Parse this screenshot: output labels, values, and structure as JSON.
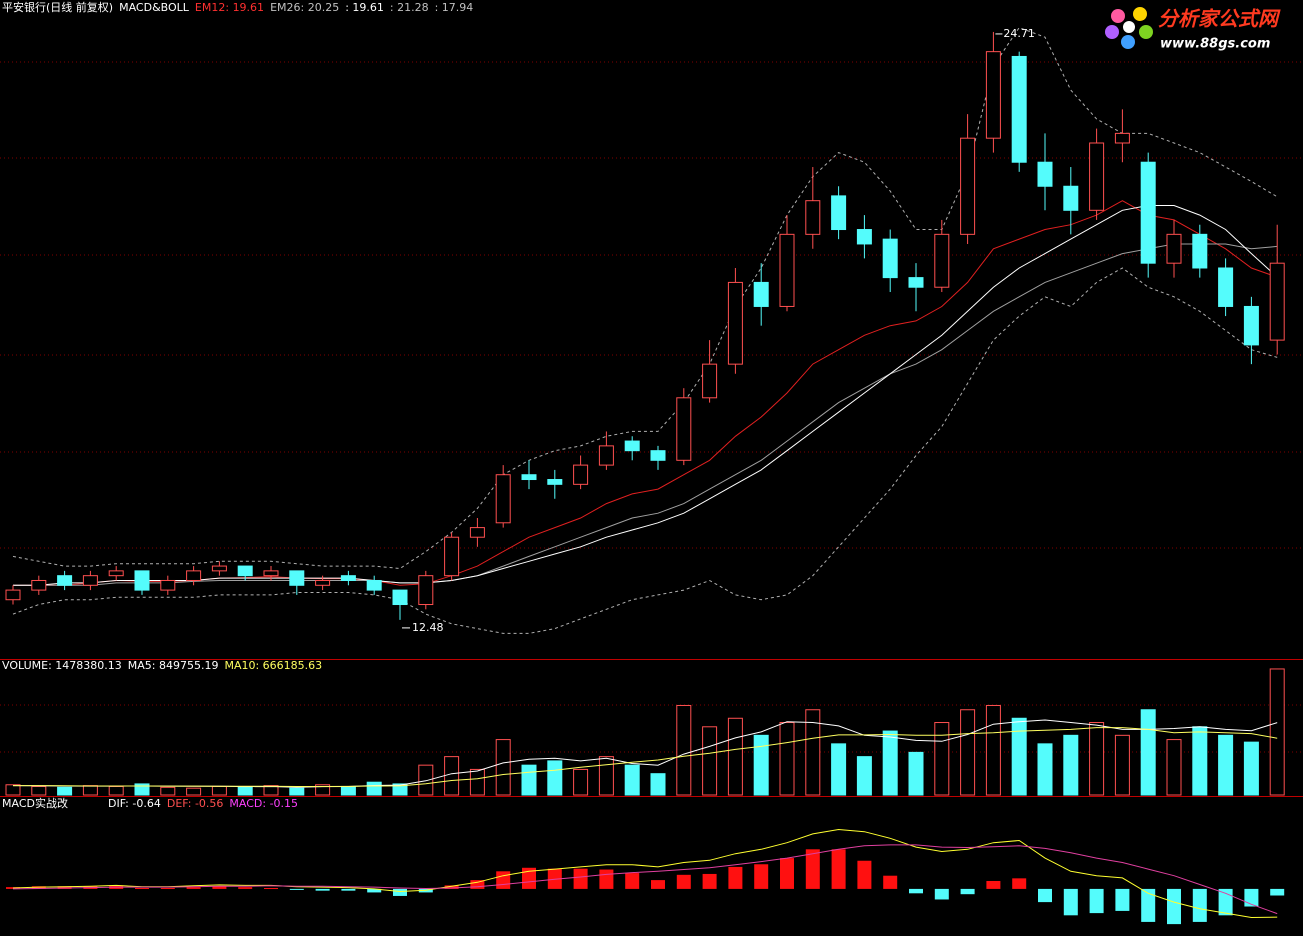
{
  "chart_data": [
    {
      "type": "candlestick",
      "header": [
        {
          "text": "平安银行(日线 前复权)",
          "color": "#ffffff"
        },
        {
          "text": "MACD&BOLL",
          "color": "#ffffff"
        },
        {
          "text": "EM12: 19.61",
          "color": "#ff3030"
        },
        {
          "text": "EM26: 20.25",
          "color": "#c0c0c0"
        },
        {
          "text": ": 19.61",
          "color": "#ffffff"
        },
        {
          "text": ": 21.28",
          "color": "#c0c0c0"
        },
        {
          "text": ": 17.94",
          "color": "#c0c0c0"
        }
      ],
      "high_label": "24.71",
      "low_label": "12.48",
      "up_color": "#ff5050",
      "down_color": "#54fcfc",
      "ylim": [
        11.75,
        25.0
      ],
      "open": [
        12.9,
        13.1,
        13.4,
        13.2,
        13.4,
        13.5,
        13.1,
        13.3,
        13.5,
        13.6,
        13.4,
        13.5,
        13.2,
        13.4,
        13.3,
        13.1,
        12.8,
        13.4,
        14.2,
        14.5,
        15.5,
        15.4,
        15.3,
        15.7,
        16.2,
        16.0,
        15.8,
        17.1,
        17.8,
        19.5,
        19.0,
        20.5,
        21.3,
        20.6,
        20.4,
        19.6,
        19.4,
        20.5,
        22.5,
        24.2,
        22.0,
        21.5,
        21.0,
        22.4,
        22.0,
        19.9,
        20.5,
        19.8,
        19.0,
        18.3
      ],
      "high": [
        13.2,
        13.4,
        13.5,
        13.5,
        13.6,
        13.5,
        13.4,
        13.6,
        13.7,
        13.6,
        13.6,
        13.5,
        13.4,
        13.5,
        13.4,
        13.1,
        13.5,
        14.3,
        14.6,
        15.7,
        15.8,
        15.6,
        15.9,
        16.4,
        16.3,
        16.1,
        17.3,
        18.3,
        19.8,
        19.9,
        20.9,
        21.9,
        21.5,
        20.9,
        20.6,
        19.9,
        20.8,
        23.0,
        24.71,
        24.3,
        22.6,
        21.9,
        22.7,
        23.1,
        22.2,
        20.8,
        20.7,
        20.0,
        19.2,
        20.7
      ],
      "low": [
        12.8,
        13.0,
        13.1,
        13.1,
        13.3,
        13.0,
        13.0,
        13.2,
        13.4,
        13.3,
        13.3,
        13.0,
        13.1,
        13.2,
        13.0,
        12.48,
        12.7,
        13.3,
        14.0,
        14.4,
        15.2,
        15.0,
        15.2,
        15.6,
        15.8,
        15.6,
        15.7,
        17.0,
        17.6,
        18.6,
        18.9,
        20.2,
        20.4,
        20.0,
        19.3,
        18.9,
        19.3,
        20.3,
        22.2,
        21.8,
        21.0,
        20.5,
        20.8,
        22.0,
        19.6,
        19.6,
        19.6,
        18.8,
        17.8,
        18.0
      ],
      "close": [
        13.1,
        13.3,
        13.2,
        13.4,
        13.5,
        13.1,
        13.3,
        13.5,
        13.6,
        13.4,
        13.5,
        13.2,
        13.3,
        13.3,
        13.1,
        12.8,
        13.4,
        14.2,
        14.4,
        15.5,
        15.4,
        15.3,
        15.7,
        16.1,
        16.0,
        15.8,
        17.1,
        17.8,
        19.5,
        19.0,
        20.5,
        21.2,
        20.6,
        20.3,
        19.6,
        19.4,
        20.5,
        22.5,
        24.3,
        22.0,
        21.5,
        21.0,
        22.4,
        22.6,
        19.9,
        20.5,
        19.8,
        19.0,
        18.2,
        19.9
      ],
      "series": [
        {
          "name": "EM12",
          "color": "#e02020",
          "dash": false,
          "values": [
            13.2,
            13.2,
            13.2,
            13.25,
            13.3,
            13.28,
            13.28,
            13.3,
            13.35,
            13.36,
            13.38,
            13.35,
            13.34,
            13.34,
            13.3,
            13.2,
            13.23,
            13.4,
            13.6,
            13.9,
            14.2,
            14.4,
            14.6,
            14.9,
            15.1,
            15.2,
            15.5,
            15.8,
            16.3,
            16.7,
            17.2,
            17.8,
            18.1,
            18.4,
            18.6,
            18.7,
            19.0,
            19.5,
            20.2,
            20.4,
            20.6,
            20.7,
            20.9,
            21.2,
            20.9,
            20.8,
            20.5,
            20.2,
            19.8,
            19.61
          ]
        },
        {
          "name": "EM26",
          "color": "#a0a0a0",
          "dash": false,
          "values": [
            13.2,
            13.2,
            13.2,
            13.2,
            13.25,
            13.25,
            13.25,
            13.28,
            13.3,
            13.3,
            13.3,
            13.3,
            13.3,
            13.3,
            13.3,
            13.25,
            13.25,
            13.3,
            13.4,
            13.6,
            13.8,
            14.0,
            14.2,
            14.4,
            14.6,
            14.7,
            14.9,
            15.2,
            15.5,
            15.8,
            16.2,
            16.6,
            17.0,
            17.3,
            17.6,
            17.8,
            18.1,
            18.5,
            18.9,
            19.2,
            19.5,
            19.7,
            19.9,
            20.1,
            20.2,
            20.3,
            20.3,
            20.3,
            20.2,
            20.25
          ]
        },
        {
          "color": "#ffffff",
          "dash": false,
          "values": [
            13.2,
            13.2,
            13.25,
            13.25,
            13.3,
            13.3,
            13.3,
            13.3,
            13.35,
            13.35,
            13.35,
            13.35,
            13.35,
            13.35,
            13.3,
            13.25,
            13.25,
            13.3,
            13.4,
            13.55,
            13.7,
            13.85,
            14.0,
            14.2,
            14.35,
            14.5,
            14.7,
            15.0,
            15.3,
            15.6,
            16.0,
            16.4,
            16.8,
            17.2,
            17.6,
            18.0,
            18.4,
            18.9,
            19.4,
            19.8,
            20.1,
            20.4,
            20.7,
            21.0,
            21.1,
            21.1,
            20.9,
            20.6,
            20.1,
            19.61
          ]
        },
        {
          "color": "#b0b0b0",
          "dash": true,
          "values": [
            13.8,
            13.7,
            13.6,
            13.6,
            13.65,
            13.65,
            13.65,
            13.65,
            13.7,
            13.7,
            13.7,
            13.65,
            13.6,
            13.6,
            13.6,
            13.55,
            13.9,
            14.3,
            14.8,
            15.5,
            15.8,
            16.0,
            16.1,
            16.3,
            16.4,
            16.4,
            17.0,
            17.8,
            19.0,
            19.8,
            20.9,
            21.7,
            22.2,
            22.0,
            21.4,
            20.6,
            20.6,
            21.8,
            24.0,
            24.8,
            24.6,
            23.5,
            22.9,
            22.6,
            22.6,
            22.4,
            22.2,
            21.9,
            21.6,
            21.28
          ]
        },
        {
          "color": "#b0b0b0",
          "dash": true,
          "values": [
            12.6,
            12.8,
            12.9,
            12.9,
            12.95,
            12.95,
            12.95,
            12.95,
            13.0,
            13.0,
            13.0,
            13.05,
            13.05,
            13.05,
            13.0,
            12.9,
            12.6,
            12.4,
            12.3,
            12.2,
            12.2,
            12.3,
            12.5,
            12.7,
            12.9,
            13.0,
            13.1,
            13.3,
            13.0,
            12.9,
            13.0,
            13.4,
            14.0,
            14.6,
            15.2,
            15.9,
            16.5,
            17.4,
            18.3,
            18.8,
            19.2,
            19.0,
            19.5,
            19.8,
            19.4,
            19.2,
            18.9,
            18.5,
            18.1,
            17.94
          ]
        }
      ]
    },
    {
      "type": "volume",
      "header": [
        {
          "text": "VOLUME: 1478380.13",
          "color": "#ffffff"
        },
        {
          "text": "MA5: 849755.19",
          "color": "#ffffff"
        },
        {
          "text": "MA10: 666185.63",
          "color": "#ffff60"
        }
      ],
      "ylim": [
        0,
        1560000
      ],
      "values": [
        120000,
        100000,
        90000,
        110000,
        100000,
        130000,
        90000,
        80000,
        100000,
        90000,
        110000,
        80000,
        120000,
        100000,
        150000,
        130000,
        350000,
        450000,
        300000,
        650000,
        350000,
        400000,
        300000,
        450000,
        350000,
        250000,
        1050000,
        800000,
        900000,
        700000,
        850000,
        1000000,
        600000,
        450000,
        750000,
        500000,
        850000,
        1000000,
        1050000,
        900000,
        600000,
        700000,
        850000,
        700000,
        1000000,
        650000,
        800000,
        700000,
        620000,
        1478380.13
      ],
      "series": [
        {
          "name": "MA5",
          "color": "#ffffff",
          "values": [
            110000,
            108000,
            105000,
            104000,
            104000,
            106000,
            104000,
            102000,
            102000,
            98000,
            100000,
            92000,
            98000,
            100000,
            112000,
            116000,
            166000,
            250000,
            282000,
            376000,
            420000,
            430000,
            400000,
            430000,
            370000,
            350000,
            480000,
            570000,
            670000,
            740000,
            860000,
            850000,
            810000,
            700000,
            680000,
            640000,
            630000,
            710000,
            830000,
            860000,
            880000,
            850000,
            820000,
            770000,
            770000,
            780000,
            800000,
            770000,
            754000,
            849755.19
          ]
        },
        {
          "name": "MA10",
          "color": "#ffff60",
          "values": [
            110000,
            110000,
            108000,
            106000,
            105000,
            105000,
            104000,
            104000,
            103000,
            102000,
            102000,
            100000,
            100000,
            101000,
            106000,
            107000,
            133000,
            170000,
            190000,
            240000,
            268000,
            290000,
            325000,
            354000,
            385000,
            410000,
            455000,
            490000,
            535000,
            570000,
            615000,
            665000,
            705000,
            705000,
            710000,
            700000,
            700000,
            720000,
            730000,
            750000,
            760000,
            770000,
            790000,
            790000,
            770000,
            730000,
            740000,
            730000,
            720000,
            666185.63
          ]
        }
      ]
    },
    {
      "type": "macd",
      "header": [
        {
          "text": "MACD实战改",
          "color": "#ffffff"
        },
        {
          "text": "DIF: -0.64",
          "color": "#ffffff"
        },
        {
          "text": "DEF: -0.56",
          "color": "#ff5050"
        },
        {
          "text": "MACD: -0.15",
          "color": "#ff40ff"
        }
      ],
      "ylim": [
        -1.07,
        2.02
      ],
      "pos_color": "#ff1010",
      "neg_color": "#54fcfc",
      "values": [
        0.04,
        0.06,
        0.06,
        0.06,
        0.08,
        0.02,
        0.02,
        0.04,
        0.06,
        0.04,
        0.02,
        -0.02,
        -0.04,
        -0.04,
        -0.08,
        -0.16,
        -0.08,
        0.08,
        0.2,
        0.4,
        0.48,
        0.46,
        0.46,
        0.44,
        0.36,
        0.2,
        0.32,
        0.34,
        0.5,
        0.56,
        0.7,
        0.9,
        0.9,
        0.64,
        0.3,
        -0.1,
        -0.24,
        -0.12,
        0.18,
        0.24,
        -0.3,
        -0.6,
        -0.55,
        -0.5,
        -0.75,
        -0.8,
        -0.75,
        -0.6,
        -0.4,
        -0.15
      ],
      "series": [
        {
          "name": "DIF",
          "color": "#ffff30",
          "values": [
            0.02,
            0.04,
            0.05,
            0.06,
            0.08,
            0.05,
            0.05,
            0.07,
            0.09,
            0.08,
            0.08,
            0.05,
            0.04,
            0.03,
            0.0,
            -0.06,
            -0.03,
            0.06,
            0.15,
            0.3,
            0.4,
            0.45,
            0.5,
            0.55,
            0.55,
            0.5,
            0.6,
            0.65,
            0.8,
            0.9,
            1.05,
            1.25,
            1.35,
            1.3,
            1.15,
            0.95,
            0.85,
            0.9,
            1.05,
            1.1,
            0.7,
            0.4,
            0.3,
            0.25,
            -0.1,
            -0.3,
            -0.45,
            -0.55,
            -0.65,
            -0.64
          ]
        },
        {
          "name": "DEF",
          "color": "#e040a0",
          "values": [
            0.0,
            0.01,
            0.02,
            0.03,
            0.04,
            0.04,
            0.04,
            0.05,
            0.06,
            0.06,
            0.07,
            0.06,
            0.06,
            0.05,
            0.04,
            0.02,
            0.01,
            0.02,
            0.05,
            0.1,
            0.16,
            0.22,
            0.27,
            0.33,
            0.37,
            0.4,
            0.44,
            0.48,
            0.55,
            0.62,
            0.7,
            0.8,
            0.9,
            0.98,
            1.0,
            1.0,
            0.95,
            0.94,
            0.96,
            0.98,
            0.92,
            0.82,
            0.7,
            0.6,
            0.45,
            0.3,
            0.1,
            -0.1,
            -0.35,
            -0.56
          ]
        }
      ]
    }
  ],
  "logo": {
    "title": "分析家公式网",
    "url": "www.88gs.com"
  }
}
